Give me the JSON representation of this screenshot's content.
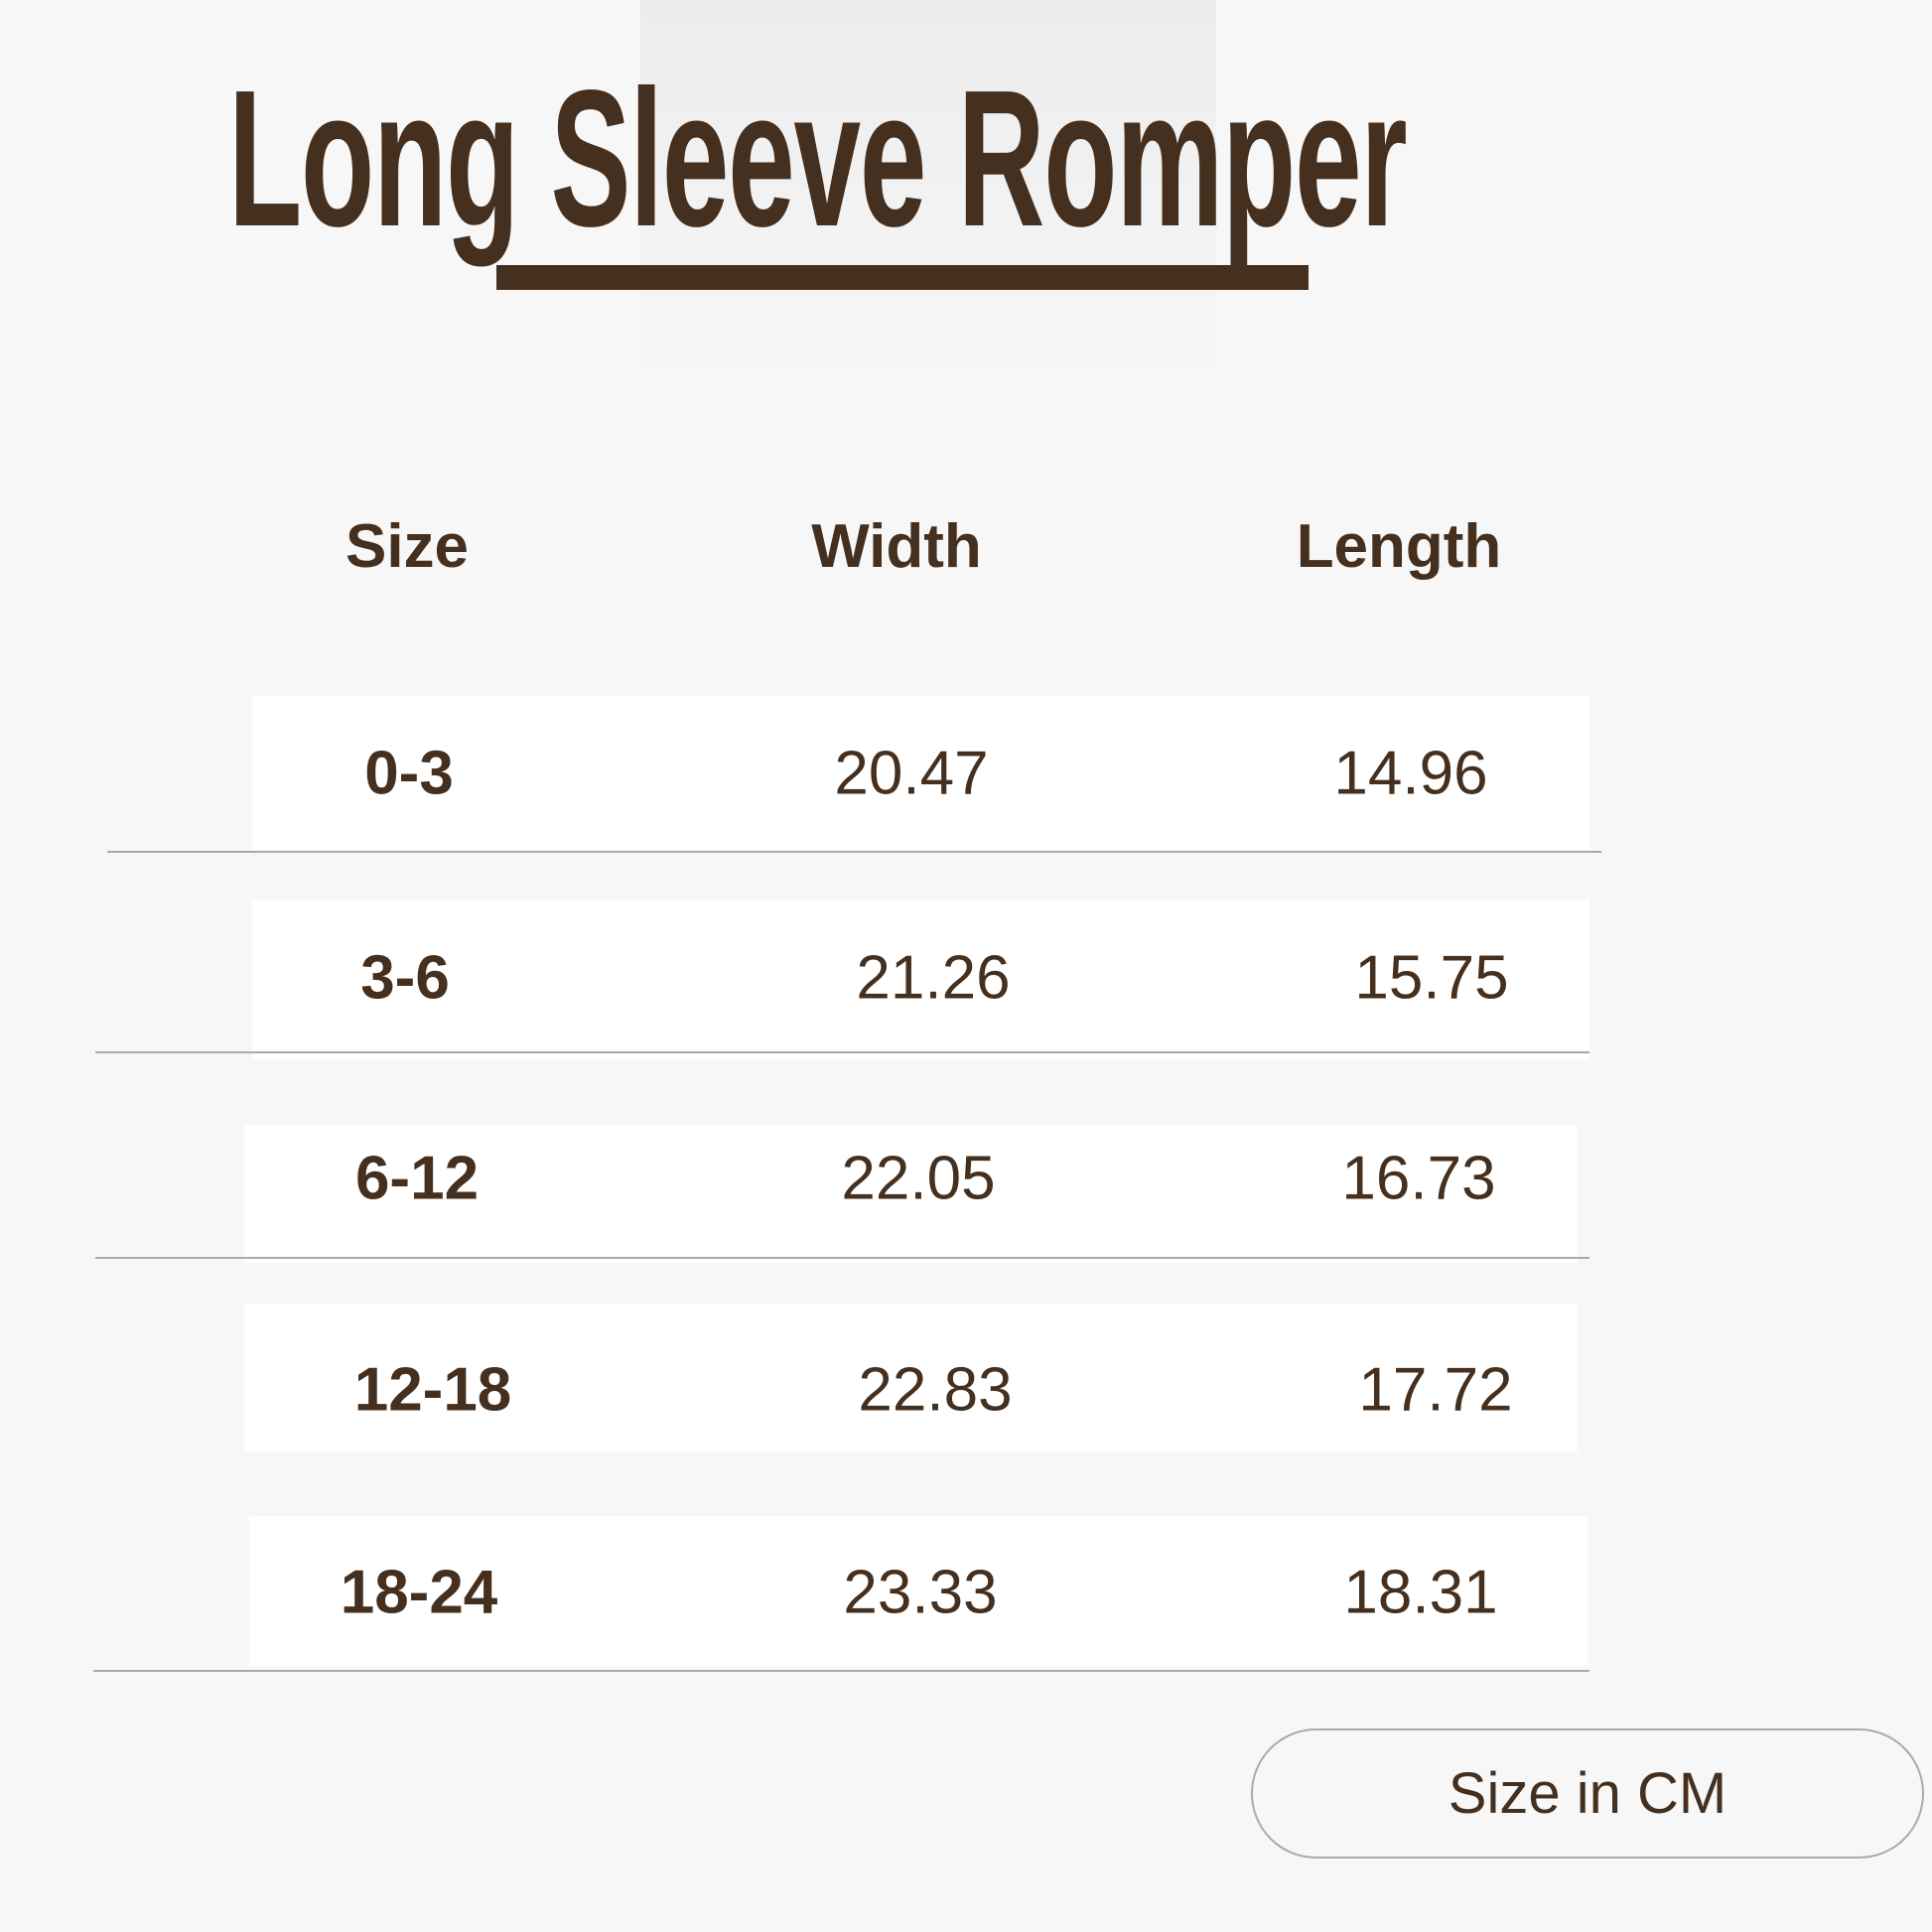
{
  "title": "Long Sleeve Romper",
  "accent_color": "#45301f",
  "table": {
    "headers": [
      "Size",
      "Width",
      "Length"
    ],
    "rows": [
      {
        "size": "0-3",
        "width": "20.47",
        "length": "14.96"
      },
      {
        "size": "3-6",
        "width": "21.26",
        "length": "15.75"
      },
      {
        "size": "6-12",
        "width": "22.05",
        "length": "16.73"
      },
      {
        "size": "12-18",
        "width": "22.83",
        "length": "17.72"
      },
      {
        "size": "18-24",
        "width": "23.33",
        "length": "18.31"
      }
    ]
  },
  "unit_label": "Size in CM"
}
